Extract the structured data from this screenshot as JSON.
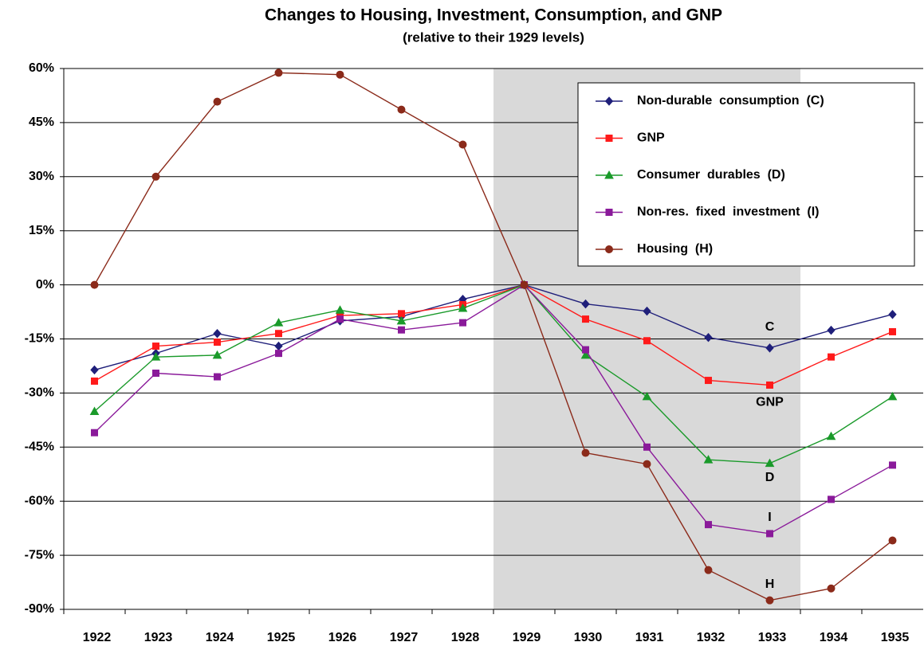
{
  "chart_data": {
    "type": "line",
    "title": "Changes to Housing, Investment, Consumption, and GNP",
    "subtitle": "(relative to their 1929 levels)",
    "categories": [
      "1922",
      "1923",
      "1924",
      "1925",
      "1926",
      "1927",
      "1928",
      "1929",
      "1930",
      "1931",
      "1932",
      "1933",
      "1934",
      "1935"
    ],
    "shaded_categories": [
      "1929",
      "1933"
    ],
    "ylim": [
      -90,
      60
    ],
    "yticks": [
      {
        "value": -90,
        "label": "-90%"
      },
      {
        "value": -75,
        "label": "-75%"
      },
      {
        "value": -60,
        "label": "-60%"
      },
      {
        "value": -45,
        "label": "-45%"
      },
      {
        "value": -30,
        "label": "-30%"
      },
      {
        "value": -15,
        "label": "-15%"
      },
      {
        "value": 0,
        "label": "0%"
      },
      {
        "value": 15,
        "label": "15%"
      },
      {
        "value": 30,
        "label": "30%"
      },
      {
        "value": 45,
        "label": "45%"
      },
      {
        "value": 60,
        "label": "60%"
      }
    ],
    "grid": true,
    "legend": "top-right",
    "series": [
      {
        "name": "Non-durable  consumption  (C)",
        "color": "#1f1f7a",
        "marker": "diamond",
        "values": [
          -23.6,
          -19,
          -13.5,
          -17,
          -10,
          -8.8,
          -4,
          0,
          -5.3,
          -7.3,
          -14.6,
          -17.5,
          -12.6,
          -8.2
        ]
      },
      {
        "name": "GNP",
        "color": "#ff1a1a",
        "marker": "square",
        "values": [
          -26.7,
          -17,
          -15.9,
          -13.5,
          -8.5,
          -8,
          -5.5,
          0,
          -9.5,
          -15.5,
          -26.5,
          -27.8,
          -20,
          -13
        ]
      },
      {
        "name": "Consumer  durables  (D)",
        "color": "#1a9a2a",
        "marker": "triangle",
        "values": [
          -35.1,
          -20,
          -19.5,
          -10.5,
          -7,
          -10,
          -6.5,
          0,
          -19.5,
          -31,
          -48.5,
          -49.5,
          -42,
          -31
        ]
      },
      {
        "name": "Non-res.  fixed  investment  (I)",
        "color": "#8a1a9a",
        "marker": "square",
        "values": [
          -41,
          -24.5,
          -25.5,
          -19,
          -9.5,
          -12.5,
          -10.5,
          0,
          -18,
          -45,
          -66.5,
          -69,
          -59.5,
          -50
        ]
      },
      {
        "name": "Housing  (H)",
        "color": "#8b2a1a",
        "marker": "circle",
        "values": [
          0,
          30,
          50.8,
          58.8,
          58.3,
          48.6,
          38.9,
          0,
          -46.6,
          -49.7,
          -79.1,
          -87.5,
          -84.2,
          -70.9
        ]
      }
    ],
    "annotations": [
      "C",
      "GNP",
      "D",
      "I",
      "H"
    ]
  }
}
